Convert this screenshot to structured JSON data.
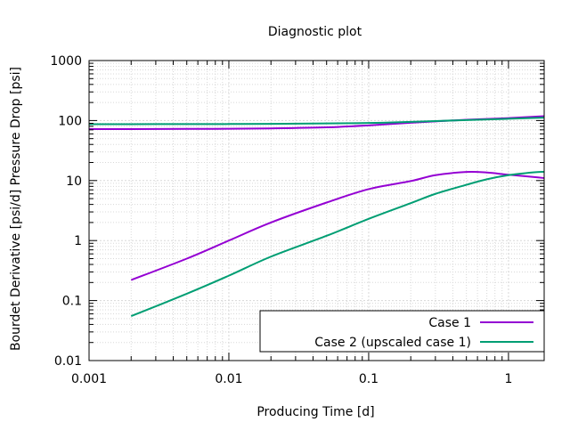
{
  "chart_data": {
    "type": "line",
    "title": "Diagnostic plot",
    "xlabel": "Producing Time [d]",
    "ylabel": "Bourdet Derivative [psi/d]  Pressure Drop [psi]",
    "xscale": "log",
    "yscale": "log",
    "xlim": [
      0.001,
      1.8
    ],
    "ylim": [
      0.01,
      1000
    ],
    "xticks": [
      {
        "value": 0.001,
        "label": "0.001"
      },
      {
        "value": 0.01,
        "label": "0.01"
      },
      {
        "value": 0.1,
        "label": "0.1"
      },
      {
        "value": 1,
        "label": "1"
      }
    ],
    "yticks": [
      {
        "value": 0.01,
        "label": "0.01"
      },
      {
        "value": 0.1,
        "label": "0.1"
      },
      {
        "value": 1,
        "label": "1"
      },
      {
        "value": 10,
        "label": "10"
      },
      {
        "value": 100,
        "label": "100"
      },
      {
        "value": 1000,
        "label": "1000"
      }
    ],
    "grid": true,
    "legend_position": "bottom-right",
    "series": [
      {
        "name": "Case 1",
        "color": "#9400d3",
        "curves": [
          {
            "x": [
              0.001,
              0.002,
              0.005,
              0.01,
              0.02,
              0.05,
              0.1,
              0.2,
              0.5,
              1,
              1.8
            ],
            "y": [
              72,
              72,
              72.5,
              73,
              74,
              77,
              83,
              92,
              103,
              110,
              118
            ]
          },
          {
            "x": [
              0.002,
              0.005,
              0.01,
              0.02,
              0.05,
              0.1,
              0.2,
              0.3,
              0.5,
              0.7,
              1,
              1.5,
              1.8
            ],
            "y": [
              0.22,
              0.5,
              1.0,
              2.0,
              4.3,
              7.2,
              9.8,
              12.3,
              13.9,
              13.6,
              12.5,
              11.5,
              11.0
            ]
          }
        ]
      },
      {
        "name": "Case 2 (upscaled case 1)",
        "color": "#009e73",
        "curves": [
          {
            "x": [
              0.001,
              0.002,
              0.005,
              0.01,
              0.02,
              0.05,
              0.1,
              0.2,
              0.5,
              1,
              1.8
            ],
            "y": [
              87,
              87,
              87.3,
              87.5,
              88,
              89.5,
              91,
              95,
              102,
              107,
              112
            ]
          },
          {
            "x": [
              0.002,
              0.005,
              0.01,
              0.02,
              0.05,
              0.1,
              0.2,
              0.3,
              0.5,
              0.7,
              1,
              1.5,
              1.8
            ],
            "y": [
              0.055,
              0.13,
              0.26,
              0.54,
              1.2,
              2.3,
              4.2,
              6.0,
              8.5,
              10.5,
              12.3,
              13.7,
              14.0
            ]
          }
        ]
      }
    ]
  }
}
